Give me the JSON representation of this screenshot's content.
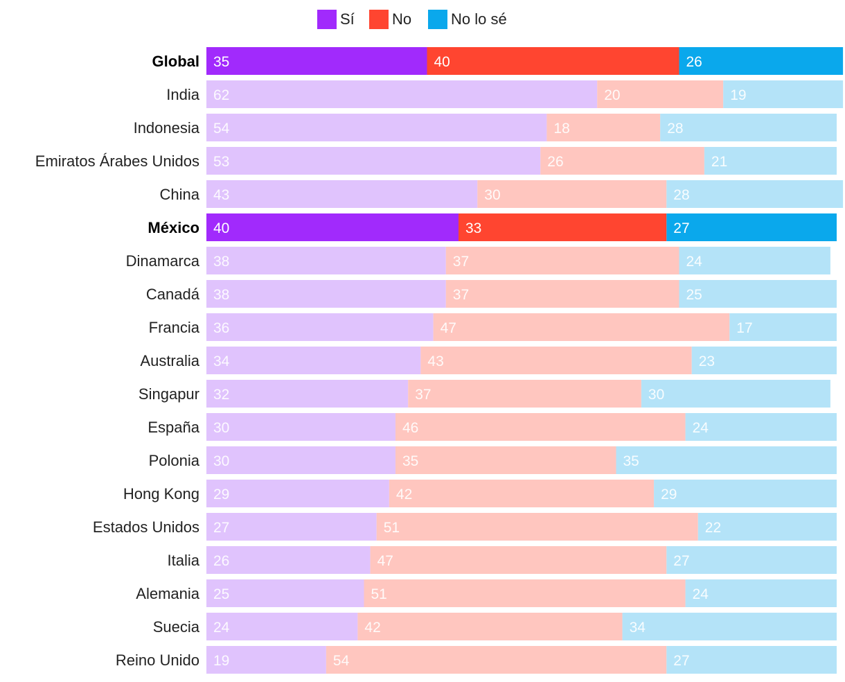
{
  "chart_data": {
    "type": "bar",
    "orientation": "horizontal",
    "stacked": true,
    "legend_position": "top-center",
    "series": [
      {
        "name": "Sí",
        "color": "#a12afc",
        "light_color": "#e0c3fd"
      },
      {
        "name": "No",
        "color": "#ff4530",
        "light_color": "#ffc6bf"
      },
      {
        "name": "No lo sé",
        "color": "#0aa8ec",
        "light_color": "#b4e3f8"
      }
    ],
    "categories": [
      {
        "label": "Global",
        "highlight": true,
        "values": [
          35,
          40,
          26
        ]
      },
      {
        "label": "India",
        "highlight": false,
        "values": [
          62,
          20,
          19
        ]
      },
      {
        "label": "Indonesia",
        "highlight": false,
        "values": [
          54,
          18,
          28
        ]
      },
      {
        "label": "Emiratos Árabes Unidos",
        "highlight": false,
        "values": [
          53,
          26,
          21
        ]
      },
      {
        "label": "China",
        "highlight": false,
        "values": [
          43,
          30,
          28
        ]
      },
      {
        "label": "México",
        "highlight": true,
        "values": [
          40,
          33,
          27
        ]
      },
      {
        "label": "Dinamarca",
        "highlight": false,
        "values": [
          38,
          37,
          24
        ]
      },
      {
        "label": "Canadá",
        "highlight": false,
        "values": [
          38,
          37,
          25
        ]
      },
      {
        "label": "Francia",
        "highlight": false,
        "values": [
          36,
          47,
          17
        ]
      },
      {
        "label": "Australia",
        "highlight": false,
        "values": [
          34,
          43,
          23
        ]
      },
      {
        "label": "Singapur",
        "highlight": false,
        "values": [
          32,
          37,
          30
        ]
      },
      {
        "label": "España",
        "highlight": false,
        "values": [
          30,
          46,
          24
        ]
      },
      {
        "label": "Polonia",
        "highlight": false,
        "values": [
          30,
          35,
          35
        ]
      },
      {
        "label": "Hong Kong",
        "highlight": false,
        "values": [
          29,
          42,
          29
        ]
      },
      {
        "label": "Estados Unidos",
        "highlight": false,
        "values": [
          27,
          51,
          22
        ]
      },
      {
        "label": "Italia",
        "highlight": false,
        "values": [
          26,
          47,
          27
        ]
      },
      {
        "label": "Alemania",
        "highlight": false,
        "values": [
          25,
          51,
          24
        ]
      },
      {
        "label": "Suecia",
        "highlight": false,
        "values": [
          24,
          42,
          34
        ]
      },
      {
        "label": "Reino Unido",
        "highlight": false,
        "values": [
          19,
          54,
          27
        ]
      }
    ],
    "xlim": [
      0,
      100
    ],
    "title": "",
    "xlabel": "",
    "ylabel": ""
  }
}
